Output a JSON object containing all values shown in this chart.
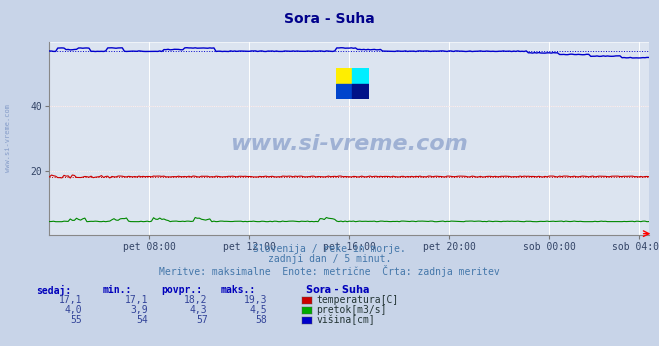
{
  "title": "Sora - Suha",
  "title_color": "#00008b",
  "bg_color": "#c8d4e8",
  "plot_bg_color": "#dce4f0",
  "xlabel": "",
  "ylabel": "",
  "ylim": [
    0,
    60
  ],
  "yticks": [
    20,
    40
  ],
  "xlim": [
    0,
    288
  ],
  "xtick_labels": [
    "pet 08:00",
    "pet 12:00",
    "pet 16:00",
    "pet 20:00",
    "sob 00:00",
    "sob 04:00"
  ],
  "xtick_positions": [
    48,
    96,
    144,
    192,
    240,
    283
  ],
  "watermark": "www.si-vreme.com",
  "watermark_color": "#4466aa",
  "watermark_alpha": 0.4,
  "side_label": "www.si-vreme.com",
  "subtitle1": "Slovenija / reke in morje.",
  "subtitle2": "zadnji dan / 5 minut.",
  "subtitle3": "Meritve: maksimalne  Enote: metrične  Črta: zadnja meritev",
  "subtitle_color": "#4477aa",
  "table_headers": [
    "sedaj:",
    "min.:",
    "povpr.:",
    "maks.:"
  ],
  "table_data": [
    [
      "17,1",
      "17,1",
      "18,2",
      "19,3"
    ],
    [
      "4,0",
      "3,9",
      "4,3",
      "4,5"
    ],
    [
      "55",
      "54",
      "57",
      "58"
    ]
  ],
  "legend_label": "Sora - Suha",
  "legend_items": [
    "temperatura[C]",
    "pretok[m3/s]",
    "višina[cm]"
  ],
  "legend_colors": [
    "#cc0000",
    "#00aa00",
    "#0000cc"
  ],
  "temp_avg": 18.2,
  "flow_avg": 4.3,
  "height_avg": 57
}
